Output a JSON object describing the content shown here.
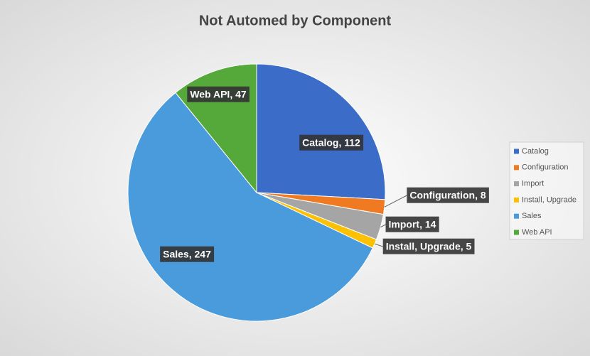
{
  "chart_data": {
    "type": "pie",
    "title": "Not Automed by Component",
    "categories": [
      "Catalog",
      "Configuration",
      "Import",
      "Install, Upgrade",
      "Sales",
      "Web API"
    ],
    "values": [
      112,
      8,
      14,
      5,
      247,
      47
    ],
    "value_labels": [
      "Catalog, 112",
      "Configuration, 8",
      "Import, 14",
      "Install, Upgrade, 5",
      "Sales, 247",
      "Web API, 47"
    ],
    "colors": [
      "#3b6cc7",
      "#f07a22",
      "#a5a5a5",
      "#ffc000",
      "#4a9bdb",
      "#55a83a"
    ],
    "legend": "right"
  }
}
